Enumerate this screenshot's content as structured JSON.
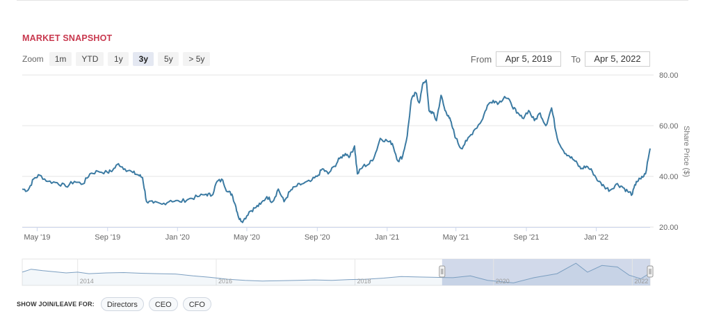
{
  "title": "MARKET SNAPSHOT",
  "zoom": {
    "label": "Zoom",
    "buttons": [
      "1m",
      "YTD",
      "1y",
      "3y",
      "5y",
      "> 5y"
    ],
    "active": "3y"
  },
  "range": {
    "from_label": "From",
    "from_value": "Apr 5, 2019",
    "to_label": "To",
    "to_value": "Apr 5, 2022"
  },
  "join_leave": {
    "label": "SHOW JOIN/LEAVE FOR:",
    "buttons": [
      "Directors",
      "CEO",
      "CFO"
    ]
  },
  "colors": {
    "line": "#3b7aa2",
    "title": "#c8384e",
    "navigator_fill": "#c9d2e6",
    "navigator_line": "#7b9ec0"
  },
  "chart_data": {
    "type": "line",
    "ylabel": "Share Price ($)",
    "ylim": [
      20,
      80
    ],
    "yticks": [
      20,
      40,
      60,
      80
    ],
    "ytick_labels": [
      "20.00",
      "40.00",
      "60.00",
      "80.00"
    ],
    "grid": true,
    "x_range": [
      "2019-04-05",
      "2022-04-05"
    ],
    "x_ticks": [
      {
        "label": "May '19",
        "date": "2019-05-01"
      },
      {
        "label": "Sep '19",
        "date": "2019-09-01"
      },
      {
        "label": "Jan '20",
        "date": "2020-01-01"
      },
      {
        "label": "May '20",
        "date": "2020-05-01"
      },
      {
        "label": "Sep '20",
        "date": "2020-09-01"
      },
      {
        "label": "Jan '21",
        "date": "2021-01-01"
      },
      {
        "label": "May '21",
        "date": "2021-05-01"
      },
      {
        "label": "Sep '21",
        "date": "2021-09-01"
      },
      {
        "label": "Jan '22",
        "date": "2022-01-01"
      }
    ],
    "series": [
      {
        "name": "",
        "points": [
          [
            "2019-04-05",
            35
          ],
          [
            "2019-04-15",
            34.5
          ],
          [
            "2019-04-25",
            39
          ],
          [
            "2019-05-05",
            40.5
          ],
          [
            "2019-05-20",
            38
          ],
          [
            "2019-06-05",
            37.5
          ],
          [
            "2019-06-20",
            36
          ],
          [
            "2019-07-05",
            38
          ],
          [
            "2019-07-20",
            37
          ],
          [
            "2019-08-01",
            41
          ],
          [
            "2019-08-15",
            42
          ],
          [
            "2019-09-01",
            41.5
          ],
          [
            "2019-09-10",
            42.5
          ],
          [
            "2019-09-20",
            45
          ],
          [
            "2019-10-01",
            43
          ],
          [
            "2019-10-15",
            41.5
          ],
          [
            "2019-10-25",
            40.5
          ],
          [
            "2019-11-01",
            39.5
          ],
          [
            "2019-11-08",
            30
          ],
          [
            "2019-11-20",
            29.5
          ],
          [
            "2019-12-05",
            29
          ],
          [
            "2019-12-20",
            30.5
          ],
          [
            "2020-01-05",
            30
          ],
          [
            "2020-01-20",
            31
          ],
          [
            "2020-02-05",
            32
          ],
          [
            "2020-02-20",
            33
          ],
          [
            "2020-03-01",
            32.5
          ],
          [
            "2020-03-10",
            38
          ],
          [
            "2020-03-20",
            38.5
          ],
          [
            "2020-03-28",
            34
          ],
          [
            "2020-04-05",
            33
          ],
          [
            "2020-04-12",
            28
          ],
          [
            "2020-04-18",
            23
          ],
          [
            "2020-04-25",
            22.5
          ],
          [
            "2020-05-05",
            26
          ],
          [
            "2020-05-15",
            27.5
          ],
          [
            "2020-05-25",
            29
          ],
          [
            "2020-06-05",
            32
          ],
          [
            "2020-06-15",
            30
          ],
          [
            "2020-06-25",
            35
          ],
          [
            "2020-07-05",
            30
          ],
          [
            "2020-07-15",
            34
          ],
          [
            "2020-07-25",
            36
          ],
          [
            "2020-08-05",
            37
          ],
          [
            "2020-08-20",
            38
          ],
          [
            "2020-09-01",
            40
          ],
          [
            "2020-09-10",
            43
          ],
          [
            "2020-09-20",
            41
          ],
          [
            "2020-10-01",
            44
          ],
          [
            "2020-10-10",
            47
          ],
          [
            "2020-10-20",
            49
          ],
          [
            "2020-10-28",
            48
          ],
          [
            "2020-11-05",
            52
          ],
          [
            "2020-11-10",
            41
          ],
          [
            "2020-11-20",
            44
          ],
          [
            "2020-12-01",
            45
          ],
          [
            "2020-12-10",
            48
          ],
          [
            "2020-12-20",
            55
          ],
          [
            "2021-01-01",
            54
          ],
          [
            "2021-01-10",
            53
          ],
          [
            "2021-01-20",
            46
          ],
          [
            "2021-01-28",
            48
          ],
          [
            "2021-02-05",
            56
          ],
          [
            "2021-02-12",
            70
          ],
          [
            "2021-02-20",
            73
          ],
          [
            "2021-02-26",
            69
          ],
          [
            "2021-03-05",
            77
          ],
          [
            "2021-03-10",
            78
          ],
          [
            "2021-03-15",
            66
          ],
          [
            "2021-03-22",
            65
          ],
          [
            "2021-03-28",
            62
          ],
          [
            "2021-04-05",
            72
          ],
          [
            "2021-04-12",
            66
          ],
          [
            "2021-04-18",
            64
          ],
          [
            "2021-04-24",
            60
          ],
          [
            "2021-05-01",
            55
          ],
          [
            "2021-05-10",
            51
          ],
          [
            "2021-05-20",
            54
          ],
          [
            "2021-06-01",
            58
          ],
          [
            "2021-06-15",
            62
          ],
          [
            "2021-06-25",
            68
          ],
          [
            "2021-07-05",
            70
          ],
          [
            "2021-07-15",
            69
          ],
          [
            "2021-07-25",
            71.5
          ],
          [
            "2021-08-05",
            69
          ],
          [
            "2021-08-15",
            65
          ],
          [
            "2021-08-25",
            63
          ],
          [
            "2021-09-05",
            66
          ],
          [
            "2021-09-15",
            62
          ],
          [
            "2021-09-25",
            65
          ],
          [
            "2021-10-05",
            60
          ],
          [
            "2021-10-15",
            67
          ],
          [
            "2021-10-25",
            55
          ],
          [
            "2021-11-05",
            50
          ],
          [
            "2021-11-15",
            48
          ],
          [
            "2021-11-25",
            46
          ],
          [
            "2021-12-05",
            43
          ],
          [
            "2021-12-15",
            44
          ],
          [
            "2021-12-25",
            42
          ],
          [
            "2022-01-05",
            38
          ],
          [
            "2022-01-15",
            36
          ],
          [
            "2022-01-25",
            34.5
          ],
          [
            "2022-02-05",
            37
          ],
          [
            "2022-02-15",
            36
          ],
          [
            "2022-02-25",
            34
          ],
          [
            "2022-03-05",
            33
          ],
          [
            "2022-03-12",
            38
          ],
          [
            "2022-03-20",
            39
          ],
          [
            "2022-03-28",
            41
          ],
          [
            "2022-04-05",
            51
          ]
        ]
      }
    ],
    "navigator": {
      "labels": [
        "2014",
        "2016",
        "2018",
        "2020",
        "2022"
      ],
      "x_range": [
        "2013-03-15",
        "2022-04-05"
      ],
      "selection": [
        "2019-04-05",
        "2022-04-05"
      ],
      "points": [
        [
          "2013-03-15",
          52
        ],
        [
          "2013-05-01",
          60
        ],
        [
          "2013-07-01",
          56
        ],
        [
          "2013-09-01",
          53
        ],
        [
          "2013-11-01",
          50
        ],
        [
          "2014-01-01",
          52
        ],
        [
          "2014-03-01",
          48
        ],
        [
          "2014-06-01",
          50
        ],
        [
          "2014-09-01",
          51
        ],
        [
          "2014-12-01",
          49
        ],
        [
          "2015-03-01",
          48
        ],
        [
          "2015-06-01",
          47
        ],
        [
          "2015-09-01",
          42
        ],
        [
          "2015-12-01",
          38
        ],
        [
          "2016-03-01",
          33
        ],
        [
          "2016-06-01",
          30
        ],
        [
          "2016-09-01",
          28
        ],
        [
          "2016-12-01",
          29
        ],
        [
          "2017-03-01",
          30
        ],
        [
          "2017-06-01",
          31
        ],
        [
          "2017-09-01",
          30
        ],
        [
          "2017-12-01",
          32
        ],
        [
          "2018-03-01",
          33
        ],
        [
          "2018-06-01",
          36
        ],
        [
          "2018-09-01",
          40
        ],
        [
          "2018-12-01",
          39
        ],
        [
          "2019-03-01",
          38
        ],
        [
          "2019-06-01",
          37
        ],
        [
          "2019-09-01",
          42
        ],
        [
          "2019-12-01",
          30
        ],
        [
          "2020-04-15",
          23
        ],
        [
          "2020-08-01",
          37
        ],
        [
          "2020-12-01",
          48
        ],
        [
          "2021-03-10",
          76
        ],
        [
          "2021-05-10",
          52
        ],
        [
          "2021-07-25",
          70
        ],
        [
          "2021-10-15",
          66
        ],
        [
          "2021-12-15",
          44
        ],
        [
          "2022-02-15",
          34
        ],
        [
          "2022-04-05",
          50
        ]
      ]
    }
  }
}
